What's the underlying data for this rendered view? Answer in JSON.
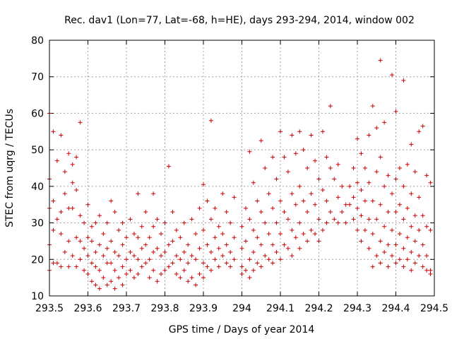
{
  "chart_data": {
    "type": "scatter",
    "title": "Rec. dav1 (Lon=77, Lat=-68, h=HE), days 293-294, 2014, window 002",
    "xlabel": "GPS time / Days of year 2014",
    "ylabel": "STEC from uqrg / TECUs",
    "xlim": [
      293.5,
      294.5
    ],
    "ylim": [
      10,
      80
    ],
    "xticks": [
      "293.5",
      "293.6",
      "293.7",
      "293.8",
      "293.9",
      "294",
      "294.1",
      "294.2",
      "294.3",
      "294.4",
      "294.5"
    ],
    "yticks": [
      "10",
      "20",
      "30",
      "40",
      "50",
      "60",
      "70",
      "80"
    ],
    "grid": true,
    "marker": "plus",
    "color": "#cc0000",
    "points": [
      [
        293.5,
        60
      ],
      [
        293.5,
        42
      ],
      [
        293.5,
        34
      ],
      [
        293.5,
        24
      ],
      [
        293.5,
        17
      ],
      [
        293.51,
        55
      ],
      [
        293.51,
        36
      ],
      [
        293.51,
        28
      ],
      [
        293.51,
        19
      ],
      [
        293.52,
        47
      ],
      [
        293.52,
        31
      ],
      [
        293.52,
        19
      ],
      [
        293.53,
        54
      ],
      [
        293.53,
        33
      ],
      [
        293.53,
        27
      ],
      [
        293.53,
        18
      ],
      [
        293.54,
        44
      ],
      [
        293.54,
        38
      ],
      [
        293.54,
        22
      ],
      [
        293.55,
        49
      ],
      [
        293.55,
        34
      ],
      [
        293.55,
        25
      ],
      [
        293.55,
        18
      ],
      [
        293.56,
        46
      ],
      [
        293.56,
        41
      ],
      [
        293.56,
        34
      ],
      [
        293.56,
        21
      ],
      [
        293.57,
        48
      ],
      [
        293.57,
        39
      ],
      [
        293.57,
        26
      ],
      [
        293.57,
        18
      ],
      [
        293.58,
        57.5
      ],
      [
        293.58,
        32
      ],
      [
        293.58,
        25
      ],
      [
        293.58,
        20
      ],
      [
        293.59,
        30
      ],
      [
        293.59,
        23
      ],
      [
        293.59,
        17
      ],
      [
        293.6,
        35
      ],
      [
        293.6,
        26
      ],
      [
        293.6,
        21
      ],
      [
        293.6,
        16
      ],
      [
        293.61,
        29
      ],
      [
        293.61,
        25
      ],
      [
        293.61,
        19
      ],
      [
        293.61,
        14
      ],
      [
        293.62,
        30
      ],
      [
        293.62,
        22
      ],
      [
        293.62,
        18
      ],
      [
        293.62,
        13
      ],
      [
        293.63,
        32
      ],
      [
        293.63,
        24
      ],
      [
        293.63,
        17
      ],
      [
        293.63,
        12
      ],
      [
        293.64,
        27
      ],
      [
        293.64,
        21
      ],
      [
        293.64,
        15
      ],
      [
        293.65,
        30
      ],
      [
        293.65,
        23
      ],
      [
        293.65,
        19
      ],
      [
        293.65,
        13
      ],
      [
        293.66,
        36
      ],
      [
        293.66,
        25
      ],
      [
        293.66,
        19
      ],
      [
        293.66,
        14
      ],
      [
        293.67,
        33
      ],
      [
        293.67,
        22
      ],
      [
        293.67,
        17
      ],
      [
        293.67,
        12
      ],
      [
        293.68,
        28
      ],
      [
        293.68,
        21
      ],
      [
        293.68,
        15
      ],
      [
        293.69,
        30
      ],
      [
        293.69,
        24
      ],
      [
        293.69,
        18
      ],
      [
        293.69,
        13
      ],
      [
        293.7,
        26
      ],
      [
        293.7,
        20
      ],
      [
        293.7,
        16
      ],
      [
        293.71,
        31
      ],
      [
        293.71,
        22
      ],
      [
        293.71,
        17
      ],
      [
        293.72,
        27
      ],
      [
        293.72,
        21
      ],
      [
        293.72,
        15
      ],
      [
        293.73,
        38
      ],
      [
        293.73,
        26
      ],
      [
        293.73,
        20
      ],
      [
        293.73,
        16
      ],
      [
        293.74,
        29
      ],
      [
        293.74,
        23
      ],
      [
        293.74,
        18
      ],
      [
        293.75,
        33
      ],
      [
        293.75,
        24
      ],
      [
        293.75,
        19
      ],
      [
        293.76,
        26
      ],
      [
        293.76,
        20
      ],
      [
        293.76,
        15
      ],
      [
        293.77,
        38
      ],
      [
        293.77,
        29
      ],
      [
        293.77,
        22
      ],
      [
        293.77,
        17
      ],
      [
        293.78,
        31
      ],
      [
        293.78,
        23
      ],
      [
        293.78,
        14
      ],
      [
        293.79,
        27
      ],
      [
        293.79,
        21
      ],
      [
        293.79,
        16
      ],
      [
        293.8,
        30
      ],
      [
        293.8,
        22
      ],
      [
        293.8,
        17
      ],
      [
        293.81,
        45.5
      ],
      [
        293.81,
        24
      ],
      [
        293.81,
        18
      ],
      [
        293.82,
        33
      ],
      [
        293.82,
        25
      ],
      [
        293.82,
        19
      ],
      [
        293.83,
        28
      ],
      [
        293.83,
        21
      ],
      [
        293.83,
        16
      ],
      [
        293.84,
        26
      ],
      [
        293.84,
        20
      ],
      [
        293.84,
        15
      ],
      [
        293.85,
        30
      ],
      [
        293.85,
        22
      ],
      [
        293.85,
        17
      ],
      [
        293.86,
        24
      ],
      [
        293.86,
        19
      ],
      [
        293.86,
        14
      ],
      [
        293.87,
        31
      ],
      [
        293.87,
        21
      ],
      [
        293.87,
        15
      ],
      [
        293.88,
        27
      ],
      [
        293.88,
        20
      ],
      [
        293.88,
        13
      ],
      [
        293.89,
        34
      ],
      [
        293.89,
        23
      ],
      [
        293.89,
        16
      ],
      [
        293.9,
        40.5
      ],
      [
        293.9,
        28
      ],
      [
        293.9,
        19
      ],
      [
        293.9,
        15
      ],
      [
        293.91,
        36
      ],
      [
        293.91,
        24
      ],
      [
        293.91,
        18
      ],
      [
        293.92,
        58
      ],
      [
        293.92,
        31
      ],
      [
        293.92,
        22
      ],
      [
        293.92,
        17
      ],
      [
        293.93,
        34
      ],
      [
        293.93,
        26
      ],
      [
        293.93,
        20
      ],
      [
        293.94,
        29
      ],
      [
        293.94,
        23
      ],
      [
        293.94,
        18
      ],
      [
        293.95,
        38
      ],
      [
        293.95,
        27
      ],
      [
        293.95,
        21
      ],
      [
        293.96,
        33
      ],
      [
        293.96,
        24
      ],
      [
        293.96,
        19
      ],
      [
        293.97,
        30
      ],
      [
        293.97,
        22
      ],
      [
        293.97,
        18
      ],
      [
        293.98,
        37
      ],
      [
        293.98,
        26
      ],
      [
        293.98,
        20
      ],
      [
        294.0,
        29
      ],
      [
        294.0,
        23
      ],
      [
        294.0,
        18
      ],
      [
        294.0,
        16
      ],
      [
        294.01,
        34
      ],
      [
        294.01,
        25
      ],
      [
        294.01,
        17
      ],
      [
        294.02,
        49.5
      ],
      [
        294.02,
        31
      ],
      [
        294.02,
        20
      ],
      [
        294.02,
        15
      ],
      [
        294.03,
        41
      ],
      [
        294.03,
        28
      ],
      [
        294.03,
        22
      ],
      [
        294.03,
        17
      ],
      [
        294.04,
        36
      ],
      [
        294.04,
        26
      ],
      [
        294.04,
        19
      ],
      [
        294.05,
        52.5
      ],
      [
        294.05,
        33
      ],
      [
        294.05,
        24
      ],
      [
        294.05,
        18
      ],
      [
        294.06,
        45
      ],
      [
        294.06,
        30
      ],
      [
        294.06,
        21
      ],
      [
        294.07,
        38
      ],
      [
        294.07,
        27
      ],
      [
        294.07,
        20
      ],
      [
        294.08,
        48
      ],
      [
        294.08,
        34
      ],
      [
        294.08,
        24
      ],
      [
        294.08,
        19
      ],
      [
        294.09,
        42
      ],
      [
        294.09,
        30
      ],
      [
        294.09,
        22
      ],
      [
        294.1,
        55
      ],
      [
        294.1,
        36
      ],
      [
        294.1,
        27
      ],
      [
        294.1,
        20
      ],
      [
        294.11,
        48
      ],
      [
        294.11,
        33
      ],
      [
        294.11,
        24
      ],
      [
        294.12,
        44
      ],
      [
        294.12,
        31
      ],
      [
        294.12,
        23
      ],
      [
        294.13,
        54
      ],
      [
        294.13,
        38
      ],
      [
        294.13,
        28
      ],
      [
        294.13,
        21
      ],
      [
        294.14,
        49
      ],
      [
        294.14,
        35
      ],
      [
        294.14,
        26
      ],
      [
        294.15,
        55
      ],
      [
        294.15,
        40
      ],
      [
        294.15,
        30
      ],
      [
        294.15,
        23
      ],
      [
        294.16,
        50
      ],
      [
        294.16,
        36
      ],
      [
        294.16,
        27
      ],
      [
        294.17,
        45
      ],
      [
        294.17,
        33
      ],
      [
        294.17,
        25
      ],
      [
        294.18,
        54
      ],
      [
        294.18,
        38
      ],
      [
        294.18,
        28
      ],
      [
        294.19,
        47
      ],
      [
        294.19,
        35
      ],
      [
        294.19,
        27
      ],
      [
        294.2,
        42
      ],
      [
        294.2,
        31
      ],
      [
        294.2,
        25
      ],
      [
        294.21,
        55
      ],
      [
        294.21,
        39
      ],
      [
        294.21,
        28
      ],
      [
        294.22,
        48
      ],
      [
        294.22,
        36
      ],
      [
        294.22,
        30
      ],
      [
        294.23,
        62
      ],
      [
        294.23,
        45
      ],
      [
        294.23,
        33
      ],
      [
        294.24,
        42
      ],
      [
        294.24,
        31
      ],
      [
        294.25,
        46
      ],
      [
        294.25,
        37
      ],
      [
        294.25,
        30
      ],
      [
        294.26,
        40
      ],
      [
        294.26,
        33
      ],
      [
        294.27,
        35
      ],
      [
        294.27,
        30
      ],
      [
        294.28,
        40
      ],
      [
        294.28,
        35
      ],
      [
        294.29,
        45
      ],
      [
        294.29,
        37
      ],
      [
        294.29,
        31
      ],
      [
        294.3,
        53
      ],
      [
        294.3,
        41
      ],
      [
        294.3,
        34
      ],
      [
        294.3,
        28
      ],
      [
        294.31,
        49
      ],
      [
        294.31,
        39
      ],
      [
        294.31,
        32
      ],
      [
        294.31,
        25
      ],
      [
        294.32,
        45
      ],
      [
        294.32,
        36
      ],
      [
        294.32,
        28
      ],
      [
        294.33,
        54
      ],
      [
        294.33,
        41
      ],
      [
        294.33,
        31
      ],
      [
        294.33,
        23
      ],
      [
        294.34,
        62
      ],
      [
        294.34,
        36
      ],
      [
        294.34,
        27
      ],
      [
        294.34,
        18
      ],
      [
        294.35,
        56
      ],
      [
        294.35,
        44
      ],
      [
        294.35,
        31
      ],
      [
        294.35,
        21
      ],
      [
        294.36,
        74.5
      ],
      [
        294.36,
        48
      ],
      [
        294.36,
        35
      ],
      [
        294.36,
        25
      ],
      [
        294.36,
        19
      ],
      [
        294.37,
        57.5
      ],
      [
        294.37,
        40
      ],
      [
        294.37,
        29
      ],
      [
        294.37,
        22
      ],
      [
        294.38,
        43
      ],
      [
        294.38,
        33
      ],
      [
        294.38,
        24
      ],
      [
        294.38,
        18
      ],
      [
        294.39,
        70.5
      ],
      [
        294.39,
        38
      ],
      [
        294.39,
        28
      ],
      [
        294.39,
        21
      ],
      [
        294.4,
        60.5
      ],
      [
        294.4,
        42
      ],
      [
        294.4,
        33
      ],
      [
        294.4,
        24
      ],
      [
        294.4,
        19
      ],
      [
        294.41,
        45
      ],
      [
        294.41,
        35
      ],
      [
        294.41,
        27
      ],
      [
        294.41,
        20
      ],
      [
        294.42,
        69
      ],
      [
        294.42,
        40
      ],
      [
        294.42,
        31
      ],
      [
        294.42,
        23
      ],
      [
        294.42,
        18
      ],
      [
        294.43,
        46
      ],
      [
        294.43,
        34
      ],
      [
        294.43,
        26
      ],
      [
        294.43,
        20
      ],
      [
        294.44,
        51.5
      ],
      [
        294.44,
        38
      ],
      [
        294.44,
        29
      ],
      [
        294.44,
        22
      ],
      [
        294.44,
        17
      ],
      [
        294.45,
        44
      ],
      [
        294.45,
        32
      ],
      [
        294.45,
        25
      ],
      [
        294.45,
        19
      ],
      [
        294.46,
        55
      ],
      [
        294.46,
        37
      ],
      [
        294.46,
        28
      ],
      [
        294.46,
        21
      ],
      [
        294.47,
        56.5
      ],
      [
        294.47,
        32
      ],
      [
        294.47,
        24
      ],
      [
        294.47,
        18
      ],
      [
        294.48,
        43
      ],
      [
        294.48,
        29
      ],
      [
        294.48,
        21
      ],
      [
        294.48,
        17
      ],
      [
        294.49,
        41
      ],
      [
        294.49,
        28
      ],
      [
        294.49,
        17
      ],
      [
        294.49,
        16
      ]
    ]
  }
}
